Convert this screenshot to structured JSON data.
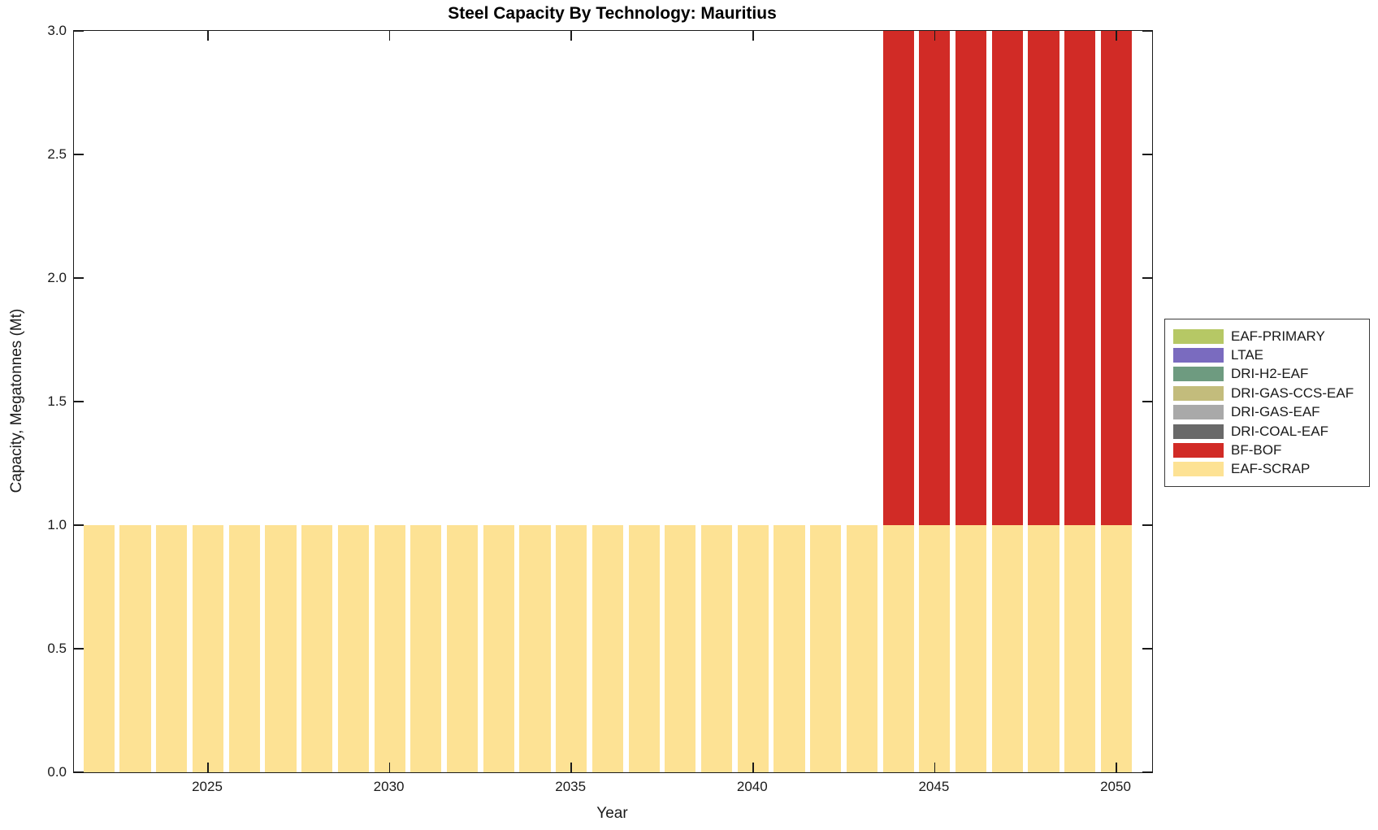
{
  "chart_data": {
    "type": "bar",
    "stacked": true,
    "title": "Steel Capacity By Technology: Mauritius",
    "xlabel": "Year",
    "ylabel": "Capacity, Megatonnes (Mt)",
    "x": [
      2022,
      2023,
      2024,
      2025,
      2026,
      2027,
      2028,
      2029,
      2030,
      2031,
      2032,
      2033,
      2034,
      2035,
      2036,
      2037,
      2038,
      2039,
      2040,
      2041,
      2042,
      2043,
      2044,
      2045,
      2046,
      2047,
      2048,
      2049,
      2050
    ],
    "series": [
      {
        "name": "EAF-SCRAP",
        "color": "#fde294",
        "values": [
          1,
          1,
          1,
          1,
          1,
          1,
          1,
          1,
          1,
          1,
          1,
          1,
          1,
          1,
          1,
          1,
          1,
          1,
          1,
          1,
          1,
          1,
          1,
          1,
          1,
          1,
          1,
          1,
          1
        ]
      },
      {
        "name": "BF-BOF",
        "color": "#d12b26",
        "values": [
          0,
          0,
          0,
          0,
          0,
          0,
          0,
          0,
          0,
          0,
          0,
          0,
          0,
          0,
          0,
          0,
          0,
          0,
          0,
          0,
          0,
          0,
          2,
          2,
          2,
          2,
          2,
          2,
          2
        ]
      }
    ],
    "stack_order": "first series is bottom of stack",
    "ylim": [
      0,
      3
    ],
    "yticks": [
      "0.0",
      "0.5",
      "1.0",
      "1.5",
      "2.0",
      "2.5",
      "3.0"
    ],
    "xticks": [
      2025,
      2030,
      2035,
      2040,
      2045,
      2050
    ],
    "grid": false,
    "legend_position": "outside-right",
    "legend": [
      {
        "label": "EAF-PRIMARY",
        "color": "#b6c865"
      },
      {
        "label": "LTAE",
        "color": "#7a6bbf"
      },
      {
        "label": "DRI-H2-EAF",
        "color": "#6e9b80"
      },
      {
        "label": "DRI-GAS-CCS-EAF",
        "color": "#c3bc7c"
      },
      {
        "label": "DRI-GAS-EAF",
        "color": "#a9a9a9"
      },
      {
        "label": "DRI-COAL-EAF",
        "color": "#696969"
      },
      {
        "label": "BF-BOF",
        "color": "#d12b26"
      },
      {
        "label": "EAF-SCRAP",
        "color": "#fde294"
      }
    ]
  }
}
